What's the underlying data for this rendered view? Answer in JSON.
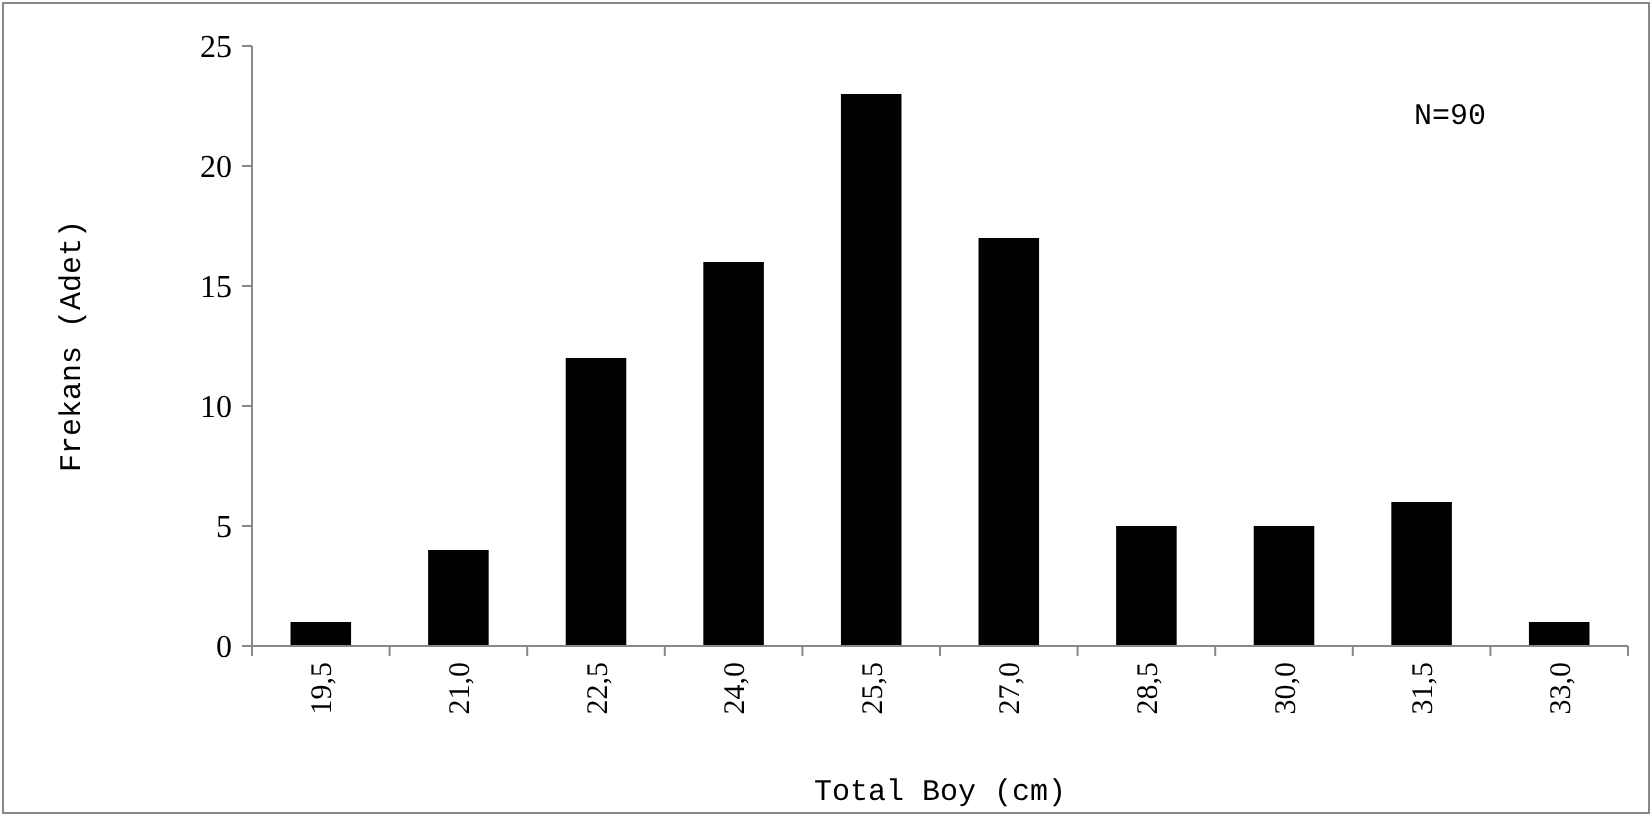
{
  "chart_data": {
    "type": "bar",
    "xlabel": "Total Boy (cm)",
    "ylabel": "Frekans (Adet)",
    "categories": [
      "19,5",
      "21,0",
      "22,5",
      "24,0",
      "25,5",
      "27,0",
      "28,5",
      "30,0",
      "31,5",
      "33,0"
    ],
    "values": [
      1,
      4,
      12,
      16,
      23,
      17,
      5,
      5,
      6,
      1
    ],
    "color": "#000000",
    "ylim": [
      0,
      25
    ],
    "yticks": [
      0,
      5,
      10,
      15,
      20,
      25
    ],
    "grid": false,
    "annotations": [
      "N=90"
    ]
  }
}
